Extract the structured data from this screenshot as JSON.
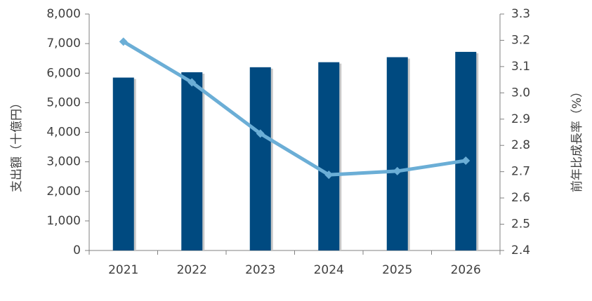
{
  "chart_data": {
    "type": "bar",
    "categories": [
      "2021",
      "2022",
      "2023",
      "2024",
      "2025",
      "2026"
    ],
    "series": [
      {
        "type": "bar",
        "axis": "left",
        "values": [
          5850,
          6030,
          6200,
          6370,
          6540,
          6720
        ],
        "color": "#004A80"
      },
      {
        "type": "line",
        "axis": "right",
        "values": [
          3.195,
          3.04,
          2.845,
          2.688,
          2.702,
          2.742
        ],
        "color": "#6BAED6"
      }
    ],
    "ylabel": "支出額（十億円）",
    "y2label": "前年比成長率（%）",
    "ylim": [
      0,
      8000
    ],
    "y2lim": [
      2.4,
      3.3
    ],
    "yticks": [
      "0",
      "1,000",
      "2,000",
      "3,000",
      "4,000",
      "5,000",
      "6,000",
      "7,000",
      "8,000"
    ],
    "y2ticks": [
      "2.4",
      "2.5",
      "2.6",
      "2.7",
      "2.8",
      "2.9",
      "3.0",
      "3.1",
      "3.2",
      "3.3"
    ],
    "grid": false
  }
}
